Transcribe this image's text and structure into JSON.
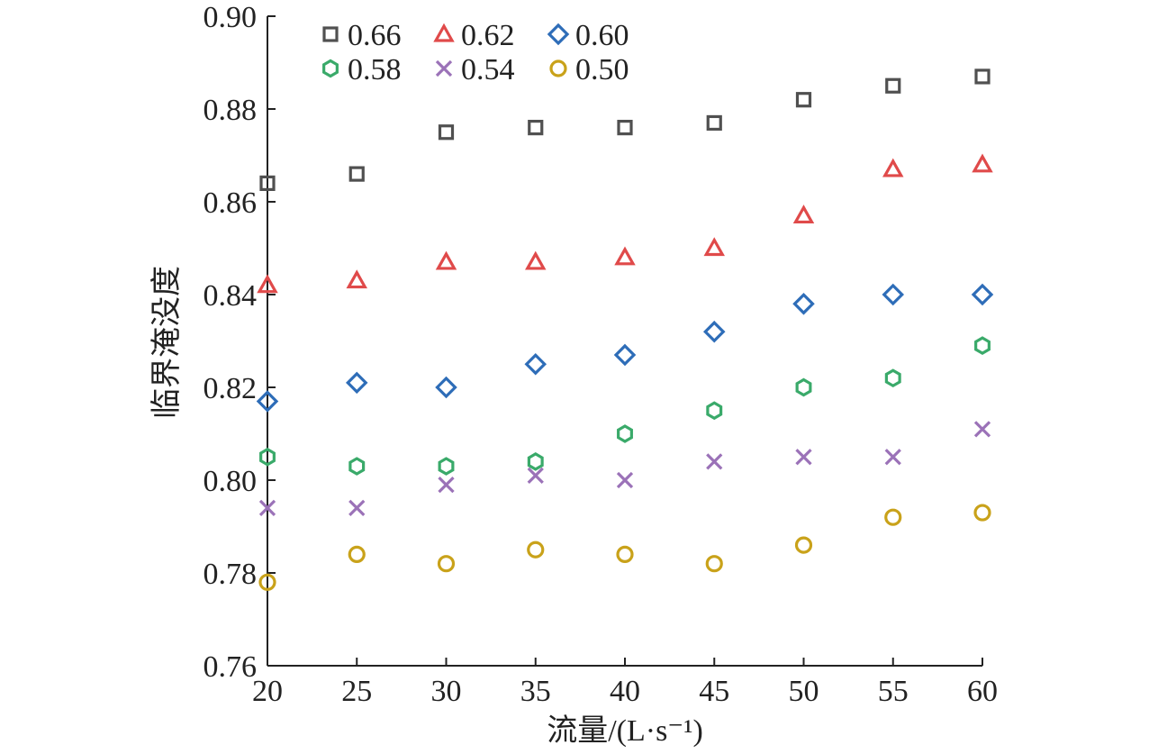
{
  "chart_data": {
    "type": "scatter",
    "xlabel": "流量/(L·s⁻¹)",
    "ylabel": "临界淹没度",
    "x": [
      20,
      25,
      30,
      35,
      40,
      45,
      50,
      55,
      60
    ],
    "xlim": [
      20,
      60
    ],
    "ylim": [
      0.76,
      0.9
    ],
    "xticks": [
      "20",
      "25",
      "30",
      "35",
      "40",
      "45",
      "50",
      "55",
      "60"
    ],
    "yticks": [
      "0.76",
      "0.78",
      "0.80",
      "0.82",
      "0.84",
      "0.86",
      "0.88",
      "0.90"
    ],
    "grid": false,
    "legend_position": "top-left",
    "series": [
      {
        "name": "0.66",
        "marker": "square",
        "color": "#505050",
        "values": [
          0.864,
          0.866,
          0.875,
          0.876,
          0.876,
          0.877,
          0.882,
          0.885,
          0.887
        ]
      },
      {
        "name": "0.62",
        "marker": "triangle",
        "color": "#e04a4a",
        "values": [
          0.842,
          0.843,
          0.847,
          0.847,
          0.848,
          0.85,
          0.857,
          0.867,
          0.868
        ]
      },
      {
        "name": "0.60",
        "marker": "diamond",
        "color": "#2e6db8",
        "values": [
          0.817,
          0.821,
          0.82,
          0.825,
          0.827,
          0.832,
          0.838,
          0.84,
          0.84
        ]
      },
      {
        "name": "0.58",
        "marker": "hexagon",
        "color": "#3aaa6a",
        "values": [
          0.805,
          0.803,
          0.803,
          0.804,
          0.81,
          0.815,
          0.82,
          0.822,
          0.829
        ]
      },
      {
        "name": "0.54",
        "marker": "x",
        "color": "#9b72b8",
        "values": [
          0.794,
          0.794,
          0.799,
          0.801,
          0.8,
          0.804,
          0.805,
          0.805,
          0.811
        ]
      },
      {
        "name": "0.50",
        "marker": "circle",
        "color": "#c9a21a",
        "values": [
          0.778,
          0.784,
          0.782,
          0.785,
          0.784,
          0.782,
          0.786,
          0.792,
          0.793
        ]
      }
    ]
  }
}
